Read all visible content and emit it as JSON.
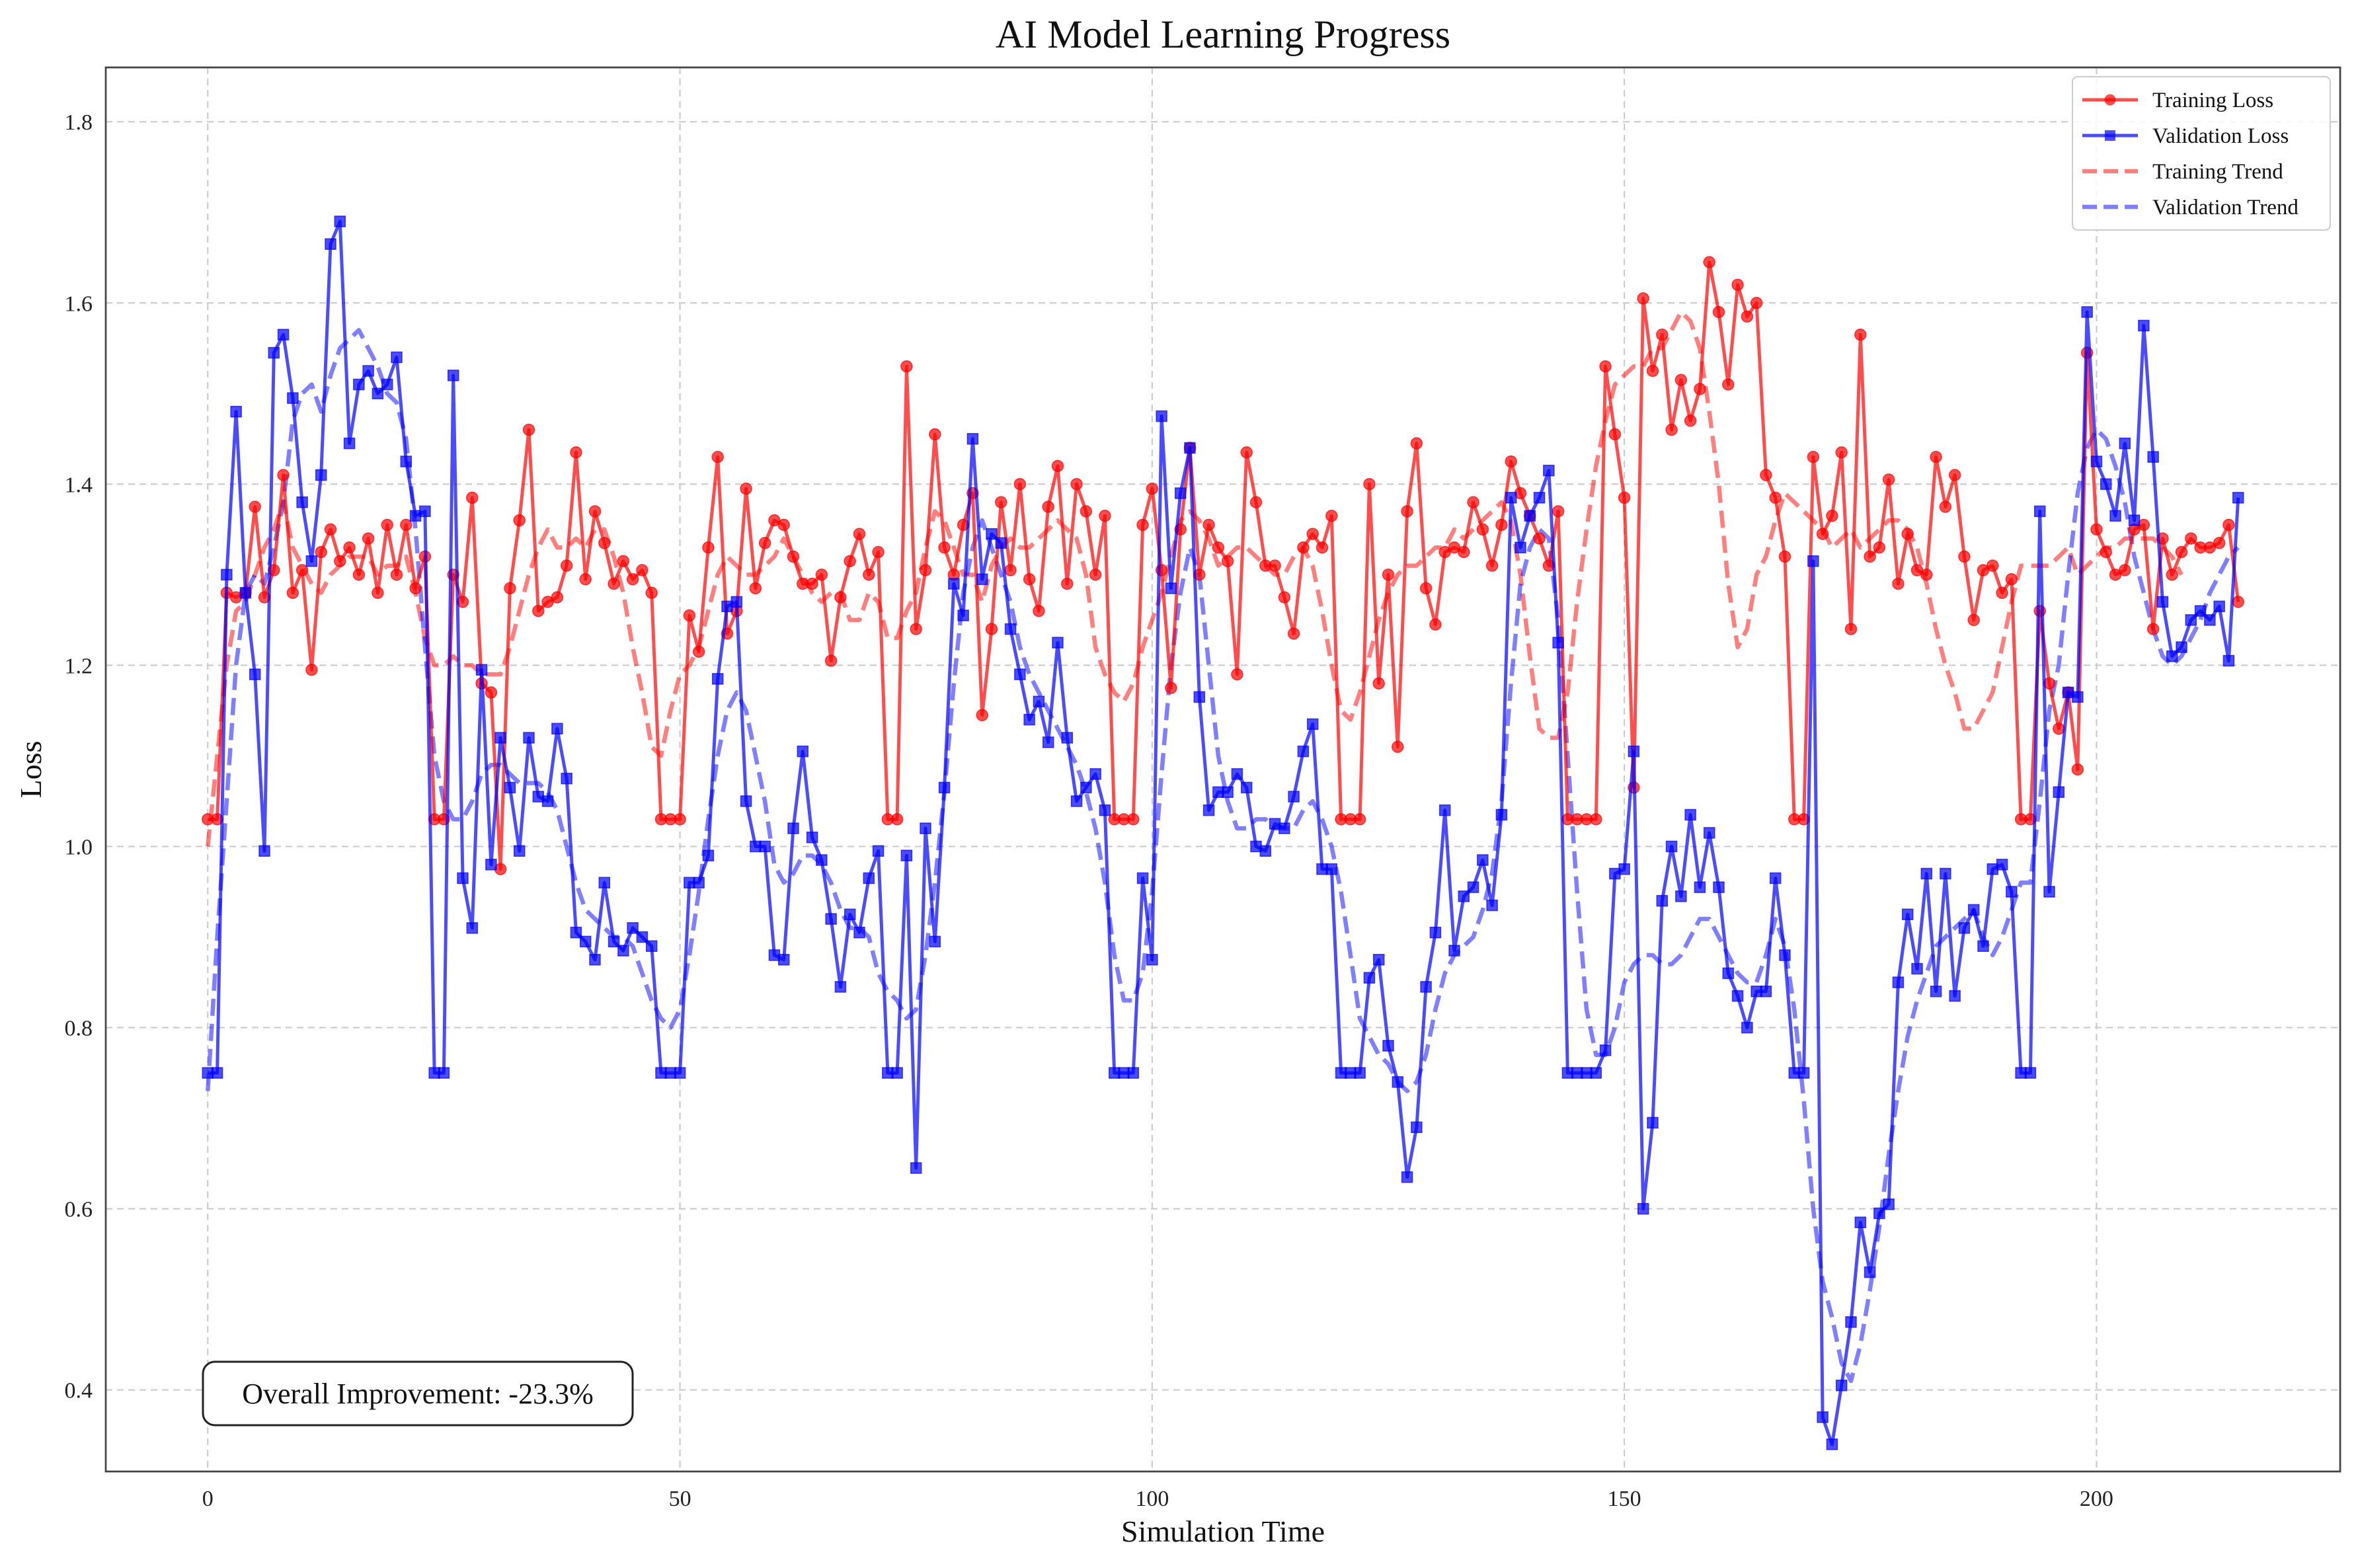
{
  "chart_data": {
    "type": "line",
    "title": "AI Model Learning Progress",
    "xlabel": "Simulation Time",
    "ylabel": "Loss",
    "xlim": [
      -10.8,
      225.8
    ],
    "ylim": [
      0.31,
      1.86
    ],
    "xticks": [
      0,
      50,
      100,
      150,
      200
    ],
    "yticks": [
      0.4,
      0.6,
      0.8,
      1.0,
      1.2,
      1.4,
      1.6,
      1.8
    ],
    "grid": true,
    "legend_position": "top-right",
    "annotation": "Overall Improvement: -23.3%",
    "x": "integers 0..215",
    "series": [
      {
        "name": "Training Loss",
        "color": "#ff0000",
        "marker": "circle",
        "style": "solid",
        "values": [
          1.03,
          1.03,
          1.28,
          1.275,
          1.28,
          1.375,
          1.275,
          1.305,
          1.41,
          1.28,
          1.305,
          1.195,
          1.325,
          1.35,
          1.315,
          1.33,
          1.3,
          1.34,
          1.28,
          1.355,
          1.3,
          1.355,
          1.285,
          1.32,
          1.03,
          1.03,
          1.3,
          1.27,
          1.385,
          1.18,
          1.17,
          0.975,
          1.285,
          1.36,
          1.46,
          1.26,
          1.27,
          1.275,
          1.31,
          1.435,
          1.295,
          1.37,
          1.335,
          1.29,
          1.315,
          1.295,
          1.305,
          1.28,
          1.03,
          1.03,
          1.03,
          1.255,
          1.215,
          1.33,
          1.43,
          1.235,
          1.26,
          1.395,
          1.285,
          1.335,
          1.36,
          1.355,
          1.32,
          1.29,
          1.29,
          1.3,
          1.205,
          1.275,
          1.315,
          1.345,
          1.3,
          1.325,
          1.03,
          1.03,
          1.53,
          1.24,
          1.305,
          1.455,
          1.33,
          1.3,
          1.355,
          1.39,
          1.145,
          1.24,
          1.38,
          1.305,
          1.4,
          1.295,
          1.26,
          1.375,
          1.42,
          1.29,
          1.4,
          1.37,
          1.3,
          1.365,
          1.03,
          1.03,
          1.03,
          1.355,
          1.395,
          1.305,
          1.175,
          1.35,
          1.44,
          1.3,
          1.355,
          1.33,
          1.315,
          1.19,
          1.435,
          1.38,
          1.31,
          1.31,
          1.275,
          1.235,
          1.33,
          1.345,
          1.33,
          1.365,
          1.03,
          1.03,
          1.03,
          1.4,
          1.18,
          1.3,
          1.11,
          1.37,
          1.445,
          1.285,
          1.245,
          1.325,
          1.33,
          1.325,
          1.38,
          1.35,
          1.31,
          1.355,
          1.425,
          1.39,
          1.365,
          1.34,
          1.31,
          1.37,
          1.03,
          1.03,
          1.03,
          1.03,
          1.53,
          1.455,
          1.385,
          1.065,
          1.605,
          1.525,
          1.565,
          1.46,
          1.515,
          1.47,
          1.505,
          1.645,
          1.59,
          1.51,
          1.62,
          1.585,
          1.6,
          1.41,
          1.385,
          1.32,
          1.03,
          1.03,
          1.43,
          1.345,
          1.365,
          1.435,
          1.24,
          1.565,
          1.32,
          1.33,
          1.405,
          1.29,
          1.345,
          1.305,
          1.3,
          1.43,
          1.375,
          1.41,
          1.32,
          1.25,
          1.305,
          1.31,
          1.28,
          1.295,
          1.03,
          1.03,
          1.26,
          1.18,
          1.13,
          1.17,
          1.085,
          1.545,
          1.35,
          1.325,
          1.3,
          1.305,
          1.35,
          1.355,
          1.24,
          1.34,
          1.3,
          1.325,
          1.34,
          1.33,
          1.33,
          1.335,
          1.355,
          1.27
        ]
      },
      {
        "name": "Validation Loss",
        "color": "#0000ff",
        "marker": "square",
        "style": "solid",
        "values": [
          0.75,
          0.75,
          1.3,
          1.48,
          1.28,
          1.19,
          0.995,
          1.545,
          1.565,
          1.495,
          1.38,
          1.315,
          1.41,
          1.665,
          1.69,
          1.445,
          1.51,
          1.525,
          1.5,
          1.51,
          1.54,
          1.425,
          1.365,
          1.37,
          0.75,
          0.75,
          1.52,
          0.965,
          0.91,
          1.195,
          0.98,
          1.12,
          1.065,
          0.995,
          1.12,
          1.055,
          1.05,
          1.13,
          1.075,
          0.905,
          0.895,
          0.875,
          0.96,
          0.895,
          0.885,
          0.91,
          0.9,
          0.89,
          0.75,
          0.75,
          0.75,
          0.96,
          0.96,
          0.99,
          1.185,
          1.265,
          1.27,
          1.05,
          1.0,
          1.0,
          0.88,
          0.875,
          1.02,
          1.105,
          1.01,
          0.985,
          0.92,
          0.845,
          0.925,
          0.905,
          0.965,
          0.995,
          0.75,
          0.75,
          0.99,
          0.645,
          1.02,
          0.895,
          1.065,
          1.29,
          1.255,
          1.45,
          1.295,
          1.345,
          1.335,
          1.24,
          1.19,
          1.14,
          1.16,
          1.115,
          1.225,
          1.12,
          1.05,
          1.065,
          1.08,
          1.04,
          0.75,
          0.75,
          0.75,
          0.965,
          0.875,
          1.475,
          1.285,
          1.39,
          1.44,
          1.165,
          1.04,
          1.06,
          1.06,
          1.08,
          1.065,
          1.0,
          0.995,
          1.025,
          1.02,
          1.055,
          1.105,
          1.135,
          0.975,
          0.975,
          0.75,
          0.75,
          0.75,
          0.855,
          0.875,
          0.78,
          0.74,
          0.635,
          0.69,
          0.845,
          0.905,
          1.04,
          0.885,
          0.945,
          0.955,
          0.985,
          0.935,
          1.035,
          1.385,
          1.33,
          1.365,
          1.385,
          1.415,
          1.225,
          0.75,
          0.75,
          0.75,
          0.75,
          0.775,
          0.97,
          0.975,
          1.105,
          0.6,
          0.695,
          0.94,
          1.0,
          0.945,
          1.035,
          0.955,
          1.015,
          0.955,
          0.86,
          0.835,
          0.8,
          0.84,
          0.84,
          0.965,
          0.88,
          0.75,
          0.75,
          1.315,
          0.37,
          0.34,
          0.405,
          0.475,
          0.585,
          0.53,
          0.595,
          0.605,
          0.85,
          0.925,
          0.865,
          0.97,
          0.84,
          0.97,
          0.835,
          0.91,
          0.93,
          0.89,
          0.975,
          0.98,
          0.95,
          0.75,
          0.75,
          1.37,
          0.95,
          1.06,
          1.17,
          1.165,
          1.59,
          1.425,
          1.4,
          1.365,
          1.445,
          1.36,
          1.575,
          1.43,
          1.27,
          1.21,
          1.22,
          1.25,
          1.26,
          1.25,
          1.265,
          1.205,
          1.385
        ]
      },
      {
        "name": "Training Trend",
        "color": "#ff0000",
        "style": "dashed",
        "values": [
          1.0,
          1.1,
          1.2,
          1.26,
          1.27,
          1.3,
          1.33,
          1.35,
          1.38,
          1.33,
          1.31,
          1.29,
          1.28,
          1.3,
          1.31,
          1.32,
          1.32,
          1.32,
          1.3,
          1.31,
          1.31,
          1.32,
          1.28,
          1.23,
          1.2,
          1.2,
          1.21,
          1.2,
          1.2,
          1.19,
          1.19,
          1.19,
          1.22,
          1.26,
          1.3,
          1.33,
          1.35,
          1.33,
          1.33,
          1.34,
          1.33,
          1.35,
          1.35,
          1.32,
          1.28,
          1.22,
          1.17,
          1.11,
          1.1,
          1.15,
          1.19,
          1.2,
          1.22,
          1.26,
          1.3,
          1.32,
          1.31,
          1.3,
          1.3,
          1.31,
          1.32,
          1.34,
          1.32,
          1.3,
          1.28,
          1.27,
          1.28,
          1.28,
          1.25,
          1.25,
          1.28,
          1.27,
          1.23,
          1.23,
          1.26,
          1.28,
          1.33,
          1.37,
          1.36,
          1.33,
          1.3,
          1.3,
          1.27,
          1.31,
          1.33,
          1.34,
          1.33,
          1.33,
          1.34,
          1.35,
          1.36,
          1.35,
          1.34,
          1.3,
          1.22,
          1.19,
          1.17,
          1.16,
          1.18,
          1.22,
          1.25,
          1.28,
          1.32,
          1.36,
          1.37,
          1.36,
          1.34,
          1.31,
          1.32,
          1.33,
          1.33,
          1.32,
          1.31,
          1.3,
          1.3,
          1.32,
          1.33,
          1.31,
          1.26,
          1.2,
          1.15,
          1.14,
          1.17,
          1.21,
          1.25,
          1.28,
          1.3,
          1.31,
          1.31,
          1.32,
          1.33,
          1.33,
          1.35,
          1.34,
          1.35,
          1.36,
          1.37,
          1.38,
          1.36,
          1.3,
          1.21,
          1.13,
          1.12,
          1.12,
          1.17,
          1.27,
          1.35,
          1.42,
          1.47,
          1.51,
          1.52,
          1.53,
          1.53,
          1.55,
          1.55,
          1.57,
          1.59,
          1.58,
          1.55,
          1.48,
          1.4,
          1.29,
          1.22,
          1.24,
          1.3,
          1.32,
          1.36,
          1.39,
          1.38,
          1.37,
          1.36,
          1.35,
          1.33,
          1.34,
          1.35,
          1.33,
          1.34,
          1.35,
          1.36,
          1.36,
          1.35,
          1.33,
          1.29,
          1.24,
          1.2,
          1.17,
          1.13,
          1.13,
          1.15,
          1.17,
          1.22,
          1.27,
          1.31,
          1.31,
          1.31,
          1.31,
          1.32,
          1.33,
          1.3,
          1.31,
          1.32,
          1.33,
          1.33,
          1.34,
          1.34,
          1.34,
          1.34,
          1.33,
          1.32,
          1.3
        ]
      },
      {
        "name": "Validation Trend",
        "color": "#0000ff",
        "style": "dashed",
        "values": [
          0.73,
          0.9,
          1.05,
          1.2,
          1.28,
          1.3,
          1.29,
          1.33,
          1.38,
          1.47,
          1.5,
          1.51,
          1.48,
          1.52,
          1.55,
          1.56,
          1.57,
          1.55,
          1.53,
          1.5,
          1.49,
          1.45,
          1.35,
          1.22,
          1.1,
          1.05,
          1.03,
          1.03,
          1.05,
          1.08,
          1.09,
          1.09,
          1.08,
          1.07,
          1.07,
          1.07,
          1.06,
          1.04,
          1.0,
          0.96,
          0.93,
          0.92,
          0.91,
          0.9,
          0.9,
          0.89,
          0.86,
          0.83,
          0.81,
          0.8,
          0.82,
          0.88,
          0.95,
          1.03,
          1.1,
          1.15,
          1.17,
          1.15,
          1.1,
          1.05,
          0.98,
          0.96,
          0.97,
          0.99,
          0.99,
          0.98,
          0.96,
          0.93,
          0.91,
          0.91,
          0.9,
          0.86,
          0.84,
          0.83,
          0.81,
          0.82,
          0.88,
          0.96,
          1.06,
          1.18,
          1.28,
          1.33,
          1.36,
          1.33,
          1.3,
          1.27,
          1.22,
          1.19,
          1.17,
          1.15,
          1.13,
          1.11,
          1.09,
          1.06,
          1.02,
          0.96,
          0.88,
          0.83,
          0.83,
          0.86,
          0.95,
          1.08,
          1.2,
          1.28,
          1.33,
          1.3,
          1.2,
          1.1,
          1.05,
          1.02,
          1.02,
          1.03,
          1.03,
          1.02,
          1.02,
          1.02,
          1.04,
          1.05,
          1.03,
          1.0,
          0.95,
          0.88,
          0.81,
          0.79,
          0.77,
          0.76,
          0.74,
          0.73,
          0.74,
          0.77,
          0.82,
          0.86,
          0.88,
          0.89,
          0.9,
          0.93,
          0.97,
          1.05,
          1.18,
          1.29,
          1.33,
          1.35,
          1.34,
          1.25,
          1.1,
          0.95,
          0.82,
          0.77,
          0.77,
          0.8,
          0.85,
          0.87,
          0.88,
          0.88,
          0.87,
          0.87,
          0.88,
          0.9,
          0.92,
          0.92,
          0.9,
          0.88,
          0.86,
          0.85,
          0.85,
          0.88,
          0.92,
          0.89,
          0.82,
          0.72,
          0.6,
          0.52,
          0.48,
          0.43,
          0.41,
          0.45,
          0.51,
          0.58,
          0.66,
          0.73,
          0.79,
          0.83,
          0.86,
          0.89,
          0.9,
          0.91,
          0.92,
          0.93,
          0.9,
          0.88,
          0.9,
          0.93,
          0.96,
          0.96,
          1.05,
          1.15,
          1.2,
          1.3,
          1.39,
          1.44,
          1.46,
          1.45,
          1.42,
          1.38,
          1.32,
          1.28,
          1.24,
          1.21,
          1.2,
          1.21,
          1.23,
          1.25,
          1.28,
          1.3,
          1.32,
          1.33
        ]
      }
    ]
  }
}
